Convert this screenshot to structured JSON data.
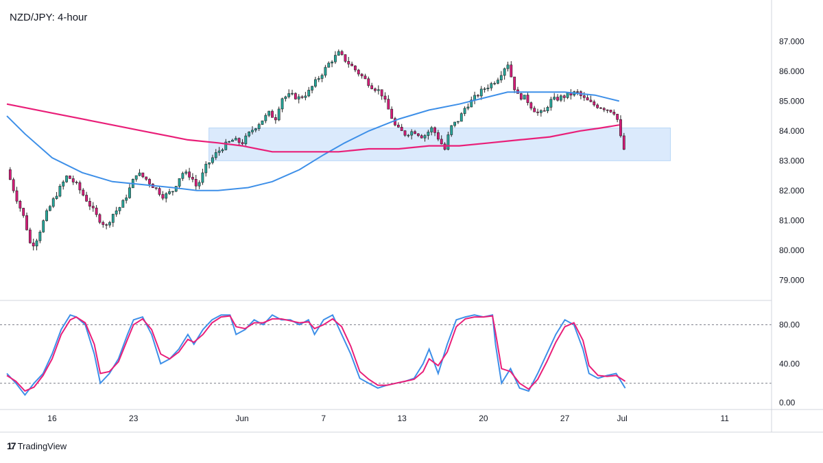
{
  "title": "NZD/JPY: 4-hour",
  "brand": {
    "name": "TradingView",
    "logo_text": "17"
  },
  "colors": {
    "up": "#26a69a",
    "down": "#d81b7a",
    "sma_fast": "#3d8fe8",
    "sma_slow": "#e91e78",
    "zone": "#dbeafc",
    "stoch_k": "#3d8fe8",
    "stoch_d": "#e91e78",
    "grid_border": "#d1d4dc"
  },
  "chart_data": [
    {
      "type": "candlestick",
      "title": "NZD/JPY: 4-hour",
      "y_ticks": [
        "87.000",
        "86.000",
        "85.000",
        "84.000",
        "83.000",
        "82.000",
        "81.000",
        "80.000",
        "79.000"
      ],
      "ylim": [
        78.5,
        87.7
      ],
      "x_ticks": [
        {
          "label": "16",
          "x": 15
        },
        {
          "label": "23",
          "x": 42
        },
        {
          "label": "Jun",
          "x": 78
        },
        {
          "label": "7",
          "x": 105
        },
        {
          "label": "13",
          "x": 131
        },
        {
          "label": "20",
          "x": 158
        },
        {
          "label": "27",
          "x": 185
        },
        {
          "label": "Jul",
          "x": 204
        },
        {
          "label": "11",
          "x": 238
        }
      ],
      "x_range": [
        0,
        250
      ],
      "zone": {
        "x_start": 67,
        "x_end": 220,
        "y_low": 83.0,
        "y_high": 84.1
      },
      "close_path": [
        [
          0,
          82.7
        ],
        [
          3,
          81.8
        ],
        [
          6,
          81.0
        ],
        [
          8,
          80.1
        ],
        [
          10,
          80.4
        ],
        [
          13,
          81.2
        ],
        [
          16,
          81.8
        ],
        [
          20,
          82.5
        ],
        [
          23,
          82.2
        ],
        [
          27,
          81.6
        ],
        [
          30,
          81.1
        ],
        [
          33,
          80.8
        ],
        [
          35,
          81.2
        ],
        [
          38,
          81.5
        ],
        [
          40,
          81.9
        ],
        [
          43,
          82.6
        ],
        [
          46,
          82.4
        ],
        [
          49,
          82.1
        ],
        [
          52,
          81.8
        ],
        [
          55,
          82.0
        ],
        [
          58,
          82.6
        ],
        [
          61,
          82.5
        ],
        [
          63,
          82.1
        ],
        [
          66,
          82.8
        ],
        [
          69,
          83.2
        ],
        [
          72,
          83.5
        ],
        [
          75,
          83.7
        ],
        [
          78,
          83.6
        ],
        [
          81,
          84.0
        ],
        [
          84,
          84.3
        ],
        [
          87,
          84.6
        ],
        [
          89,
          84.4
        ],
        [
          91,
          85.1
        ],
        [
          94,
          85.2
        ],
        [
          97,
          85.1
        ],
        [
          100,
          85.3
        ],
        [
          102,
          85.6
        ],
        [
          105,
          86.0
        ],
        [
          107,
          86.3
        ],
        [
          110,
          86.6
        ],
        [
          112,
          86.4
        ],
        [
          115,
          86.1
        ],
        [
          118,
          85.8
        ],
        [
          121,
          85.5
        ],
        [
          124,
          85.3
        ],
        [
          127,
          84.6
        ],
        [
          129,
          84.1
        ],
        [
          132,
          83.9
        ],
        [
          135,
          84.0
        ],
        [
          138,
          83.8
        ],
        [
          141,
          84.1
        ],
        [
          144,
          83.6
        ],
        [
          145,
          83.3
        ],
        [
          147,
          84.1
        ],
        [
          150,
          84.4
        ],
        [
          152,
          84.8
        ],
        [
          155,
          85.1
        ],
        [
          158,
          85.4
        ],
        [
          161,
          85.6
        ],
        [
          163,
          85.8
        ],
        [
          166,
          86.3
        ],
        [
          167,
          85.9
        ],
        [
          169,
          85.2
        ],
        [
          172,
          85.1
        ],
        [
          174,
          84.8
        ],
        [
          176,
          84.6
        ],
        [
          178,
          84.6
        ],
        [
          180,
          85.0
        ],
        [
          183,
          85.1
        ],
        [
          186,
          85.2
        ],
        [
          189,
          85.3
        ],
        [
          191,
          85.1
        ],
        [
          194,
          84.9
        ],
        [
          197,
          84.8
        ],
        [
          200,
          84.7
        ],
        [
          202,
          84.6
        ],
        [
          204,
          83.5
        ],
        [
          205,
          83.3
        ]
      ],
      "series": [
        {
          "name": "",
          "values": [
            [
              0,
              84.5
            ],
            [
              6,
              83.9
            ],
            [
              15,
              83.1
            ],
            [
              25,
              82.6
            ],
            [
              35,
              82.3
            ],
            [
              45,
              82.2
            ],
            [
              55,
              82.1
            ],
            [
              63,
              82.0
            ],
            [
              70,
              82.0
            ],
            [
              80,
              82.1
            ],
            [
              88,
              82.3
            ],
            [
              97,
              82.7
            ],
            [
              105,
              83.2
            ],
            [
              112,
              83.6
            ],
            [
              120,
              84.0
            ],
            [
              130,
              84.4
            ],
            [
              140,
              84.7
            ],
            [
              150,
              84.9
            ],
            [
              158,
              85.1
            ],
            [
              166,
              85.3
            ],
            [
              175,
              85.3
            ],
            [
              185,
              85.3
            ],
            [
              195,
              85.2
            ],
            [
              203,
              85.0
            ]
          ]
        },
        {
          "name": "",
          "values": [
            [
              0,
              84.9
            ],
            [
              15,
              84.6
            ],
            [
              30,
              84.3
            ],
            [
              45,
              84.0
            ],
            [
              60,
              83.7
            ],
            [
              70,
              83.6
            ],
            [
              78,
              83.5
            ],
            [
              88,
              83.3
            ],
            [
              100,
              83.3
            ],
            [
              110,
              83.3
            ],
            [
              120,
              83.4
            ],
            [
              130,
              83.4
            ],
            [
              140,
              83.5
            ],
            [
              150,
              83.5
            ],
            [
              160,
              83.6
            ],
            [
              170,
              83.7
            ],
            [
              180,
              83.8
            ],
            [
              190,
              84.0
            ],
            [
              197,
              84.1
            ],
            [
              203,
              84.2
            ]
          ]
        }
      ]
    },
    {
      "type": "line",
      "title": "",
      "y_ticks": [
        "80.00",
        "40.00",
        "0.00"
      ],
      "ylim": [
        -2,
        100
      ],
      "levels": [
        80,
        20
      ],
      "series": [
        {
          "name": "",
          "values": [
            [
              0,
              30
            ],
            [
              3,
              20
            ],
            [
              6,
              8
            ],
            [
              9,
              20
            ],
            [
              12,
              30
            ],
            [
              15,
              50
            ],
            [
              18,
              75
            ],
            [
              21,
              90
            ],
            [
              23,
              88
            ],
            [
              26,
              80
            ],
            [
              29,
              50
            ],
            [
              31,
              20
            ],
            [
              34,
              30
            ],
            [
              37,
              45
            ],
            [
              40,
              70
            ],
            [
              42,
              85
            ],
            [
              45,
              88
            ],
            [
              48,
              70
            ],
            [
              51,
              40
            ],
            [
              54,
              45
            ],
            [
              57,
              55
            ],
            [
              60,
              70
            ],
            [
              62,
              60
            ],
            [
              65,
              75
            ],
            [
              68,
              85
            ],
            [
              71,
              90
            ],
            [
              74,
              90
            ],
            [
              76,
              70
            ],
            [
              79,
              75
            ],
            [
              82,
              85
            ],
            [
              85,
              80
            ],
            [
              88,
              90
            ],
            [
              91,
              85
            ],
            [
              94,
              85
            ],
            [
              97,
              80
            ],
            [
              100,
              85
            ],
            [
              102,
              70
            ],
            [
              105,
              85
            ],
            [
              108,
              90
            ],
            [
              111,
              70
            ],
            [
              114,
              50
            ],
            [
              117,
              25
            ],
            [
              120,
              20
            ],
            [
              123,
              15
            ],
            [
              126,
              18
            ],
            [
              129,
              20
            ],
            [
              132,
              22
            ],
            [
              135,
              25
            ],
            [
              138,
              40
            ],
            [
              140,
              55
            ],
            [
              143,
              30
            ],
            [
              146,
              60
            ],
            [
              149,
              85
            ],
            [
              152,
              88
            ],
            [
              155,
              90
            ],
            [
              158,
              88
            ],
            [
              161,
              90
            ],
            [
              162,
              60
            ],
            [
              164,
              20
            ],
            [
              167,
              35
            ],
            [
              170,
              15
            ],
            [
              173,
              12
            ],
            [
              176,
              30
            ],
            [
              179,
              50
            ],
            [
              182,
              70
            ],
            [
              185,
              85
            ],
            [
              188,
              80
            ],
            [
              191,
              55
            ],
            [
              193,
              30
            ],
            [
              196,
              25
            ],
            [
              199,
              28
            ],
            [
              202,
              30
            ],
            [
              205,
              15
            ]
          ]
        },
        {
          "name": "",
          "values": [
            [
              0,
              28
            ],
            [
              3,
              22
            ],
            [
              6,
              12
            ],
            [
              9,
              16
            ],
            [
              12,
              28
            ],
            [
              15,
              45
            ],
            [
              18,
              70
            ],
            [
              21,
              85
            ],
            [
              23,
              88
            ],
            [
              26,
              82
            ],
            [
              29,
              60
            ],
            [
              31,
              30
            ],
            [
              34,
              32
            ],
            [
              37,
              42
            ],
            [
              40,
              65
            ],
            [
              42,
              80
            ],
            [
              45,
              86
            ],
            [
              48,
              75
            ],
            [
              51,
              50
            ],
            [
              54,
              45
            ],
            [
              57,
              52
            ],
            [
              60,
              65
            ],
            [
              62,
              62
            ],
            [
              65,
              70
            ],
            [
              68,
              82
            ],
            [
              71,
              88
            ],
            [
              74,
              89
            ],
            [
              76,
              78
            ],
            [
              79,
              76
            ],
            [
              82,
              82
            ],
            [
              85,
              82
            ],
            [
              88,
              86
            ],
            [
              91,
              86
            ],
            [
              94,
              84
            ],
            [
              97,
              82
            ],
            [
              100,
              83
            ],
            [
              102,
              76
            ],
            [
              105,
              80
            ],
            [
              108,
              86
            ],
            [
              111,
              78
            ],
            [
              114,
              58
            ],
            [
              117,
              32
            ],
            [
              120,
              24
            ],
            [
              123,
              18
            ],
            [
              126,
              18
            ],
            [
              129,
              20
            ],
            [
              132,
              22
            ],
            [
              135,
              24
            ],
            [
              138,
              32
            ],
            [
              140,
              45
            ],
            [
              143,
              38
            ],
            [
              146,
              52
            ],
            [
              149,
              78
            ],
            [
              152,
              86
            ],
            [
              155,
              88
            ],
            [
              158,
              88
            ],
            [
              161,
              89
            ],
            [
              162,
              72
            ],
            [
              164,
              35
            ],
            [
              167,
              32
            ],
            [
              170,
              20
            ],
            [
              173,
              14
            ],
            [
              176,
              24
            ],
            [
              179,
              42
            ],
            [
              182,
              62
            ],
            [
              185,
              78
            ],
            [
              188,
              82
            ],
            [
              191,
              64
            ],
            [
              193,
              38
            ],
            [
              196,
              28
            ],
            [
              199,
              27
            ],
            [
              202,
              28
            ],
            [
              205,
              22
            ]
          ]
        }
      ]
    }
  ]
}
